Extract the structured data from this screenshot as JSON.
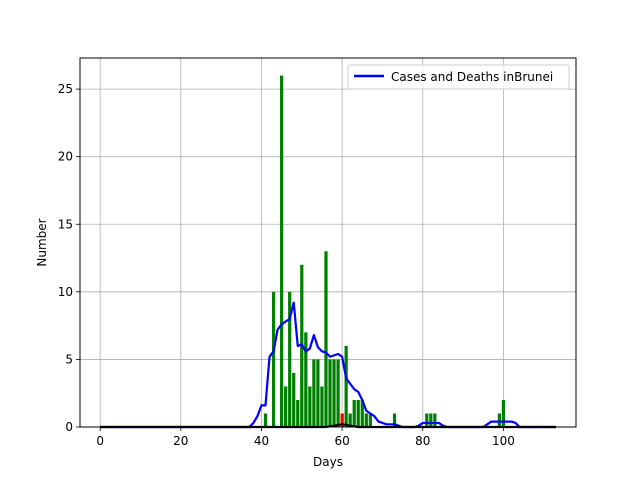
{
  "chart_data": {
    "type": "bar",
    "title": "",
    "xlabel": "Days",
    "ylabel": "Number",
    "xlim": [
      -5,
      118
    ],
    "ylim": [
      0,
      27.3
    ],
    "xticks": [
      0,
      20,
      40,
      60,
      80,
      100
    ],
    "yticks": [
      0,
      5,
      10,
      15,
      20,
      25
    ],
    "grid": true,
    "legend": {
      "placement": "top-right",
      "entries": [
        "Cases and Deaths inBrunei"
      ]
    },
    "colors": {
      "cases": "#008000",
      "deaths": "#ff0000",
      "line": "#0000ff",
      "zero_line": "#000000",
      "grid": "#b0b0b0"
    },
    "series": [
      {
        "kind": "bar",
        "color": "#008000",
        "x": [
          41,
          43,
          45,
          46,
          47,
          48,
          49,
          50,
          51,
          52,
          53,
          54,
          55,
          56,
          57,
          58,
          59,
          60,
          61,
          62,
          63,
          64,
          65,
          66,
          67,
          73,
          81,
          82,
          83,
          99,
          100
        ],
        "values": [
          1,
          10,
          26,
          3,
          10,
          4,
          2,
          12,
          7,
          3,
          5,
          5,
          3,
          13,
          5,
          5,
          5,
          1,
          6,
          1,
          2,
          2,
          2,
          1,
          1,
          1,
          1,
          1,
          1,
          1,
          2
        ]
      },
      {
        "kind": "bar",
        "color": "#ff0000",
        "x": [
          60
        ],
        "values": [
          1
        ]
      },
      {
        "kind": "line",
        "name": "Cases and Deaths inBrunei",
        "color": "#0000ff",
        "x": [
          0,
          37,
          38,
          39,
          40,
          41,
          42,
          43,
          44,
          45,
          46,
          47,
          48,
          49,
          50,
          51,
          52,
          53,
          54,
          55,
          56,
          57,
          58,
          59,
          60,
          61,
          62,
          63,
          64,
          65,
          66,
          67,
          68,
          69,
          70,
          71,
          72,
          73,
          74,
          75,
          76,
          77,
          78,
          79,
          80,
          81,
          82,
          83,
          84,
          85,
          86,
          95,
          96,
          97,
          98,
          99,
          100,
          101,
          102,
          103,
          104,
          113
        ],
        "values": [
          0,
          0,
          0.3,
          0.8,
          1.6,
          1.6,
          5.2,
          5.6,
          7.2,
          7.6,
          7.8,
          8.0,
          9.2,
          6.0,
          6.1,
          5.6,
          5.8,
          6.8,
          5.9,
          5.6,
          5.5,
          5.2,
          5.3,
          5.4,
          5.2,
          3.6,
          3.2,
          2.8,
          2.6,
          2.0,
          1.2,
          1.0,
          0.8,
          0.4,
          0.3,
          0.2,
          0.2,
          0.2,
          0.1,
          0,
          0,
          0,
          0,
          0.1,
          0.3,
          0.3,
          0.3,
          0.3,
          0.3,
          0.1,
          0,
          0,
          0.2,
          0.4,
          0.4,
          0.4,
          0.4,
          0.4,
          0.4,
          0.3,
          0,
          0
        ]
      },
      {
        "kind": "line",
        "color": "#000000",
        "x": [
          0,
          56,
          57,
          58,
          59,
          60,
          61,
          62,
          63,
          64,
          113
        ],
        "values": [
          0,
          0,
          0.05,
          0.1,
          0.15,
          0.2,
          0.15,
          0.1,
          0.05,
          0,
          0
        ]
      }
    ]
  }
}
